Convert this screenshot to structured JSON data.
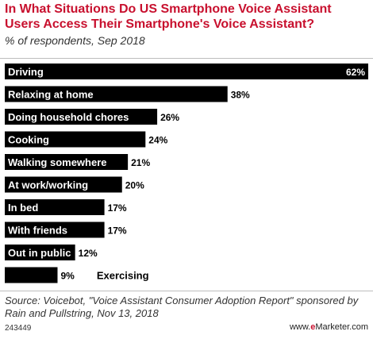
{
  "chart_data": {
    "type": "bar",
    "orientation": "horizontal",
    "title": "In What Situations Do US Smartphone Voice Assistant Users Access Their Smartphone's Voice Assistant?",
    "subtitle": "% of respondents, Sep 2018",
    "categories": [
      "Driving",
      "Relaxing at home",
      "Doing household chores",
      "Cooking",
      "Walking somewhere",
      "At work/working",
      "In bed",
      "With friends",
      "Out in public",
      "Exercising"
    ],
    "values": [
      62,
      38,
      26,
      24,
      21,
      20,
      17,
      17,
      12,
      9
    ],
    "value_labels": [
      "62%",
      "38%",
      "26%",
      "24%",
      "21%",
      "20%",
      "17%",
      "17%",
      "12%",
      "9%"
    ],
    "xlim": [
      0,
      62
    ],
    "bar_color": "#000000",
    "label_color": "#ffffff"
  },
  "source": "Source: Voicebot, \"Voice Assistant Consumer Adoption Report\" sponsored by Rain and Pullstring, Nov 13, 2018",
  "footer": {
    "id": "243449",
    "brand_prefix": "www.",
    "brand_highlight": "e",
    "brand_suffix": "Marketer.com"
  }
}
